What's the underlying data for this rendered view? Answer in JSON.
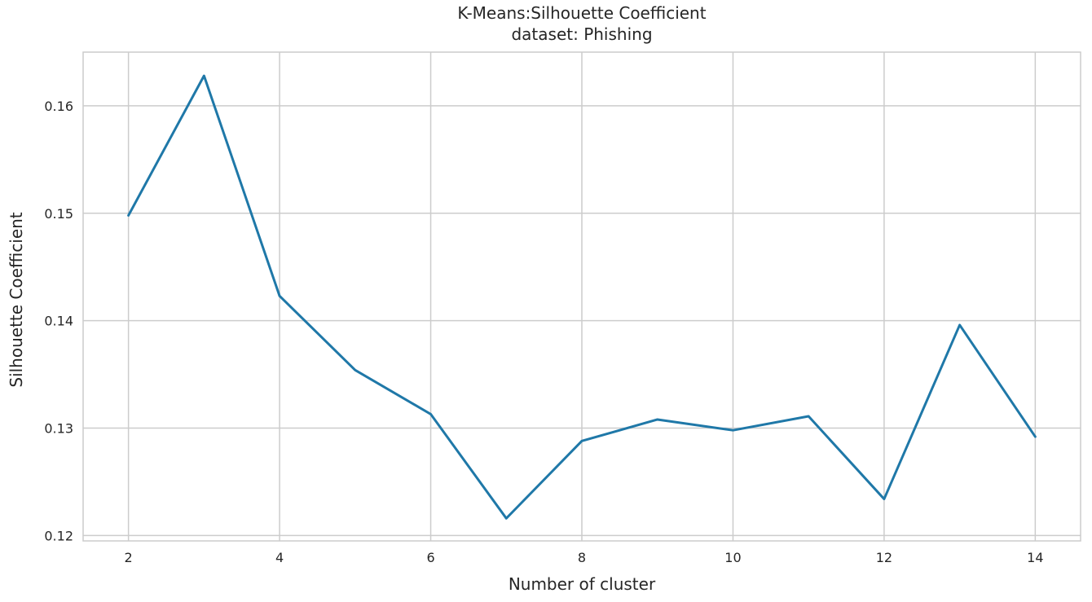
{
  "chart_data": {
    "type": "line",
    "title": "K-Means:Silhouette Coefficient",
    "subtitle": "dataset: Phishing",
    "xlabel": "Number of cluster",
    "ylabel": "Silhouette Coefficient",
    "xlim": [
      1.4,
      14.6
    ],
    "ylim": [
      0.1195,
      0.165
    ],
    "xticks": [
      2,
      4,
      6,
      8,
      10,
      12,
      14
    ],
    "yticks": [
      0.12,
      0.13,
      0.14,
      0.15,
      0.16
    ],
    "xtick_labels": [
      "2",
      "4",
      "6",
      "8",
      "10",
      "12",
      "14"
    ],
    "ytick_labels": [
      "0.12",
      "0.13",
      "0.14",
      "0.15",
      "0.16"
    ],
    "grid": true,
    "legend": "none",
    "series": [
      {
        "color": "#1f78a8",
        "x": [
          2,
          3,
          4,
          5,
          6,
          7,
          8,
          9,
          10,
          11,
          12,
          13,
          14
        ],
        "y": [
          0.1498,
          0.1628,
          0.1423,
          0.1354,
          0.1313,
          0.1216,
          0.1288,
          0.1308,
          0.1298,
          0.1311,
          0.1234,
          0.1396,
          0.1292
        ]
      }
    ]
  },
  "colors": {
    "grid": "#cccccc",
    "frame": "#cccccc",
    "text": "#262626"
  }
}
